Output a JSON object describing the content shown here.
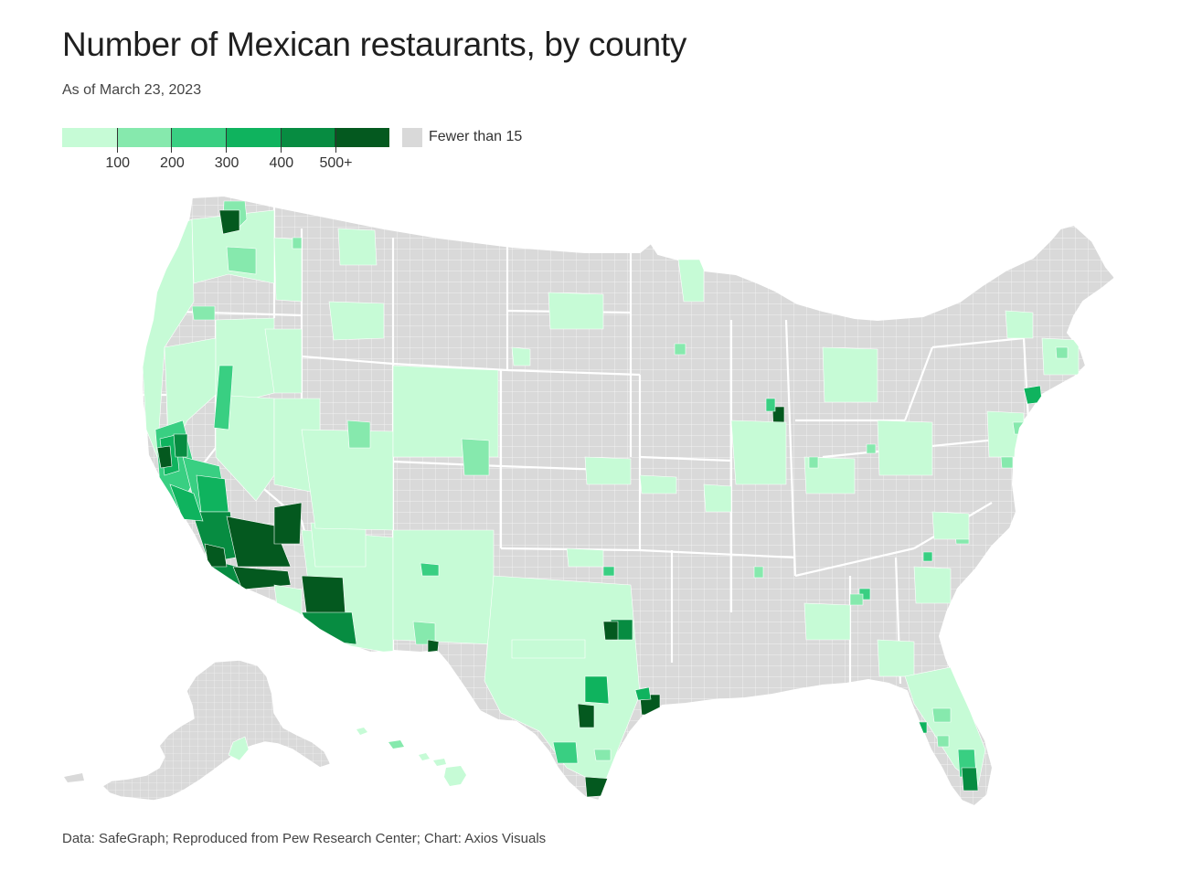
{
  "title": "Number of Mexican restaurants, by county",
  "subtitle": "As of March 23, 2023",
  "legend": {
    "colors": [
      "#c6fbd6",
      "#86e9ad",
      "#39cf82",
      "#0fb35e",
      "#078c41",
      "#04591f"
    ],
    "ticks": [
      "100",
      "200",
      "300",
      "400",
      "500+"
    ],
    "null_label": "Fewer than 15",
    "null_color": "#d9d9d9"
  },
  "map": {
    "background_color": "#d9d9d9",
    "border_color": "#ffffff"
  },
  "source": "Data: SafeGraph; Reproduced from Pew Research Center; Chart: Axios Visuals"
}
